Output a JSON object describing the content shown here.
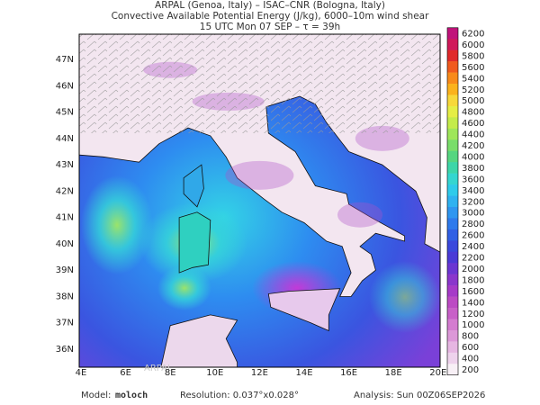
{
  "header": {
    "lines": [
      "ARPAL (Genoa, Italy)  –  ISAC–CNR (Bologna, Italy)",
      "Convective Available Potential Energy (J/kg), 6000–10m wind shear",
      "15 UTC Mon 07 SEP  –  τ = 39h"
    ]
  },
  "map": {
    "lon_labels": [
      "4E",
      "6E",
      "8E",
      "10E",
      "12E",
      "14E",
      "16E",
      "18E",
      "20E"
    ],
    "lat_labels": [
      "47N",
      "46N",
      "45N",
      "44N",
      "43N",
      "42N",
      "41N",
      "40N",
      "39N",
      "38N",
      "37N",
      "36N"
    ],
    "watermark": "ARPAL"
  },
  "colorbar": {
    "labels": [
      "6200",
      "6000",
      "5800",
      "5600",
      "5400",
      "5200",
      "5000",
      "4800",
      "4600",
      "4400",
      "4200",
      "4000",
      "3800",
      "3600",
      "3400",
      "3200",
      "3000",
      "2800",
      "2600",
      "2400",
      "2200",
      "2000",
      "1800",
      "1600",
      "1400",
      "1200",
      "1000",
      "800",
      "600",
      "400",
      "200"
    ]
  },
  "footer": {
    "model_label": "Model:",
    "model": "moloch",
    "resolution": "Resolution: 0.037°x0.028°",
    "analysis": "Analysis: Sun 00Z06SEP2026"
  }
}
